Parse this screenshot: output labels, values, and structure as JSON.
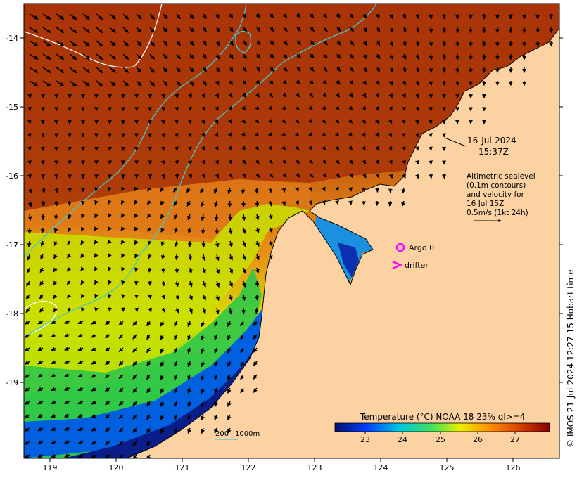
{
  "map": {
    "x_ticks": [
      "119",
      "120",
      "121",
      "122",
      "123",
      "124",
      "125",
      "126"
    ],
    "y_ticks": [
      "-14",
      "-15",
      "-16",
      "-17",
      "-18",
      "-19"
    ],
    "timestamp_date": "16-Jul-2024",
    "timestamp_time": "15:37Z",
    "altimetry_line1": "Altimetric sealevel",
    "altimetry_line2": "(0.1m contours)",
    "altimetry_line3": "and velocity for",
    "altimetry_line4": "16 Jul 15Z",
    "velocity_scale": "0.5m/s (1kt 24h)",
    "argo_label": "Argo 0",
    "drifter_label": "drifter",
    "bathymetry_label_1": "200",
    "bathymetry_label_2": "1000m",
    "colorbar_title": "Temperature (°C) NOAA 18 23% ql>=4",
    "colorbar_ticks": [
      "23",
      "24",
      "25",
      "26",
      "27"
    ],
    "copyright": "© IMOS 21-Jul-2024 12:27:15 Hobart time"
  },
  "colors": {
    "land": "#fcd2a2",
    "warm": "#b03c0a",
    "cool": "#0a1e96",
    "contour": "#40c8d0",
    "argo": "#ff00ff"
  }
}
